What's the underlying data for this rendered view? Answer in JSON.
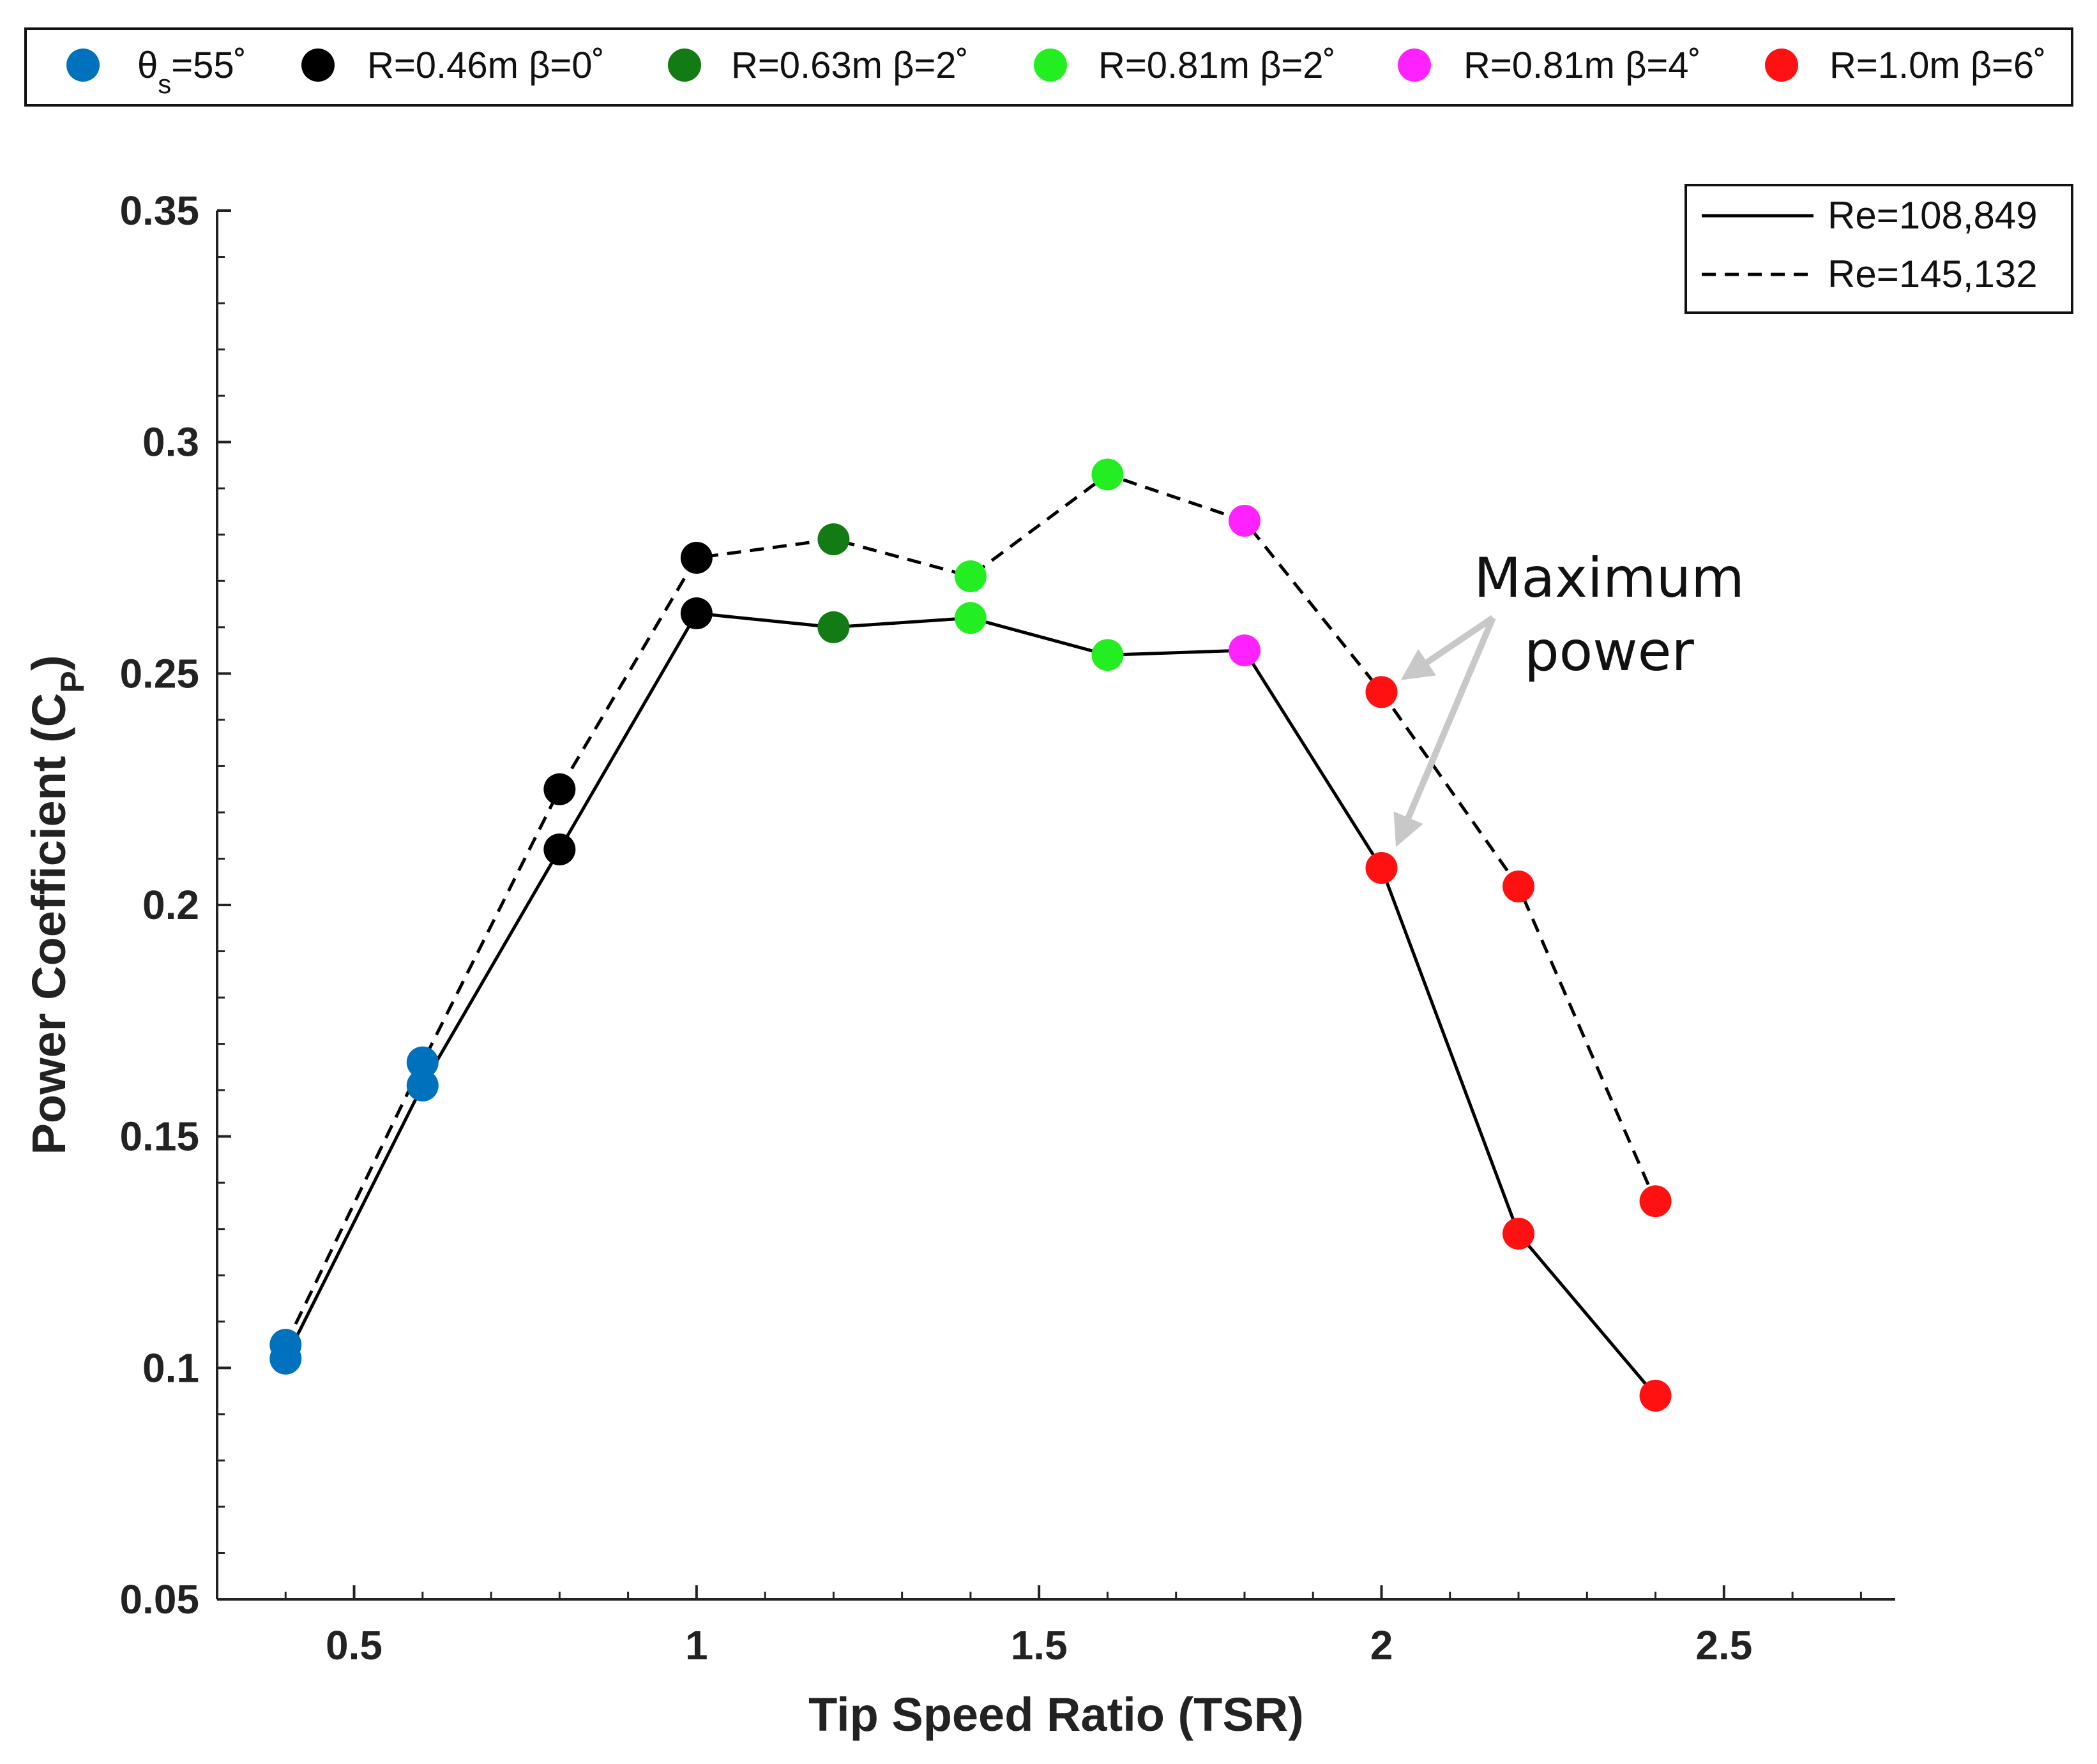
{
  "chart_data": {
    "type": "scatter",
    "title": "",
    "xlabel": "Tip Speed Ratio (TSR)",
    "ylabel_main": "Power Coefficient (C",
    "ylabel_sub": "P",
    "ylabel_close": ")",
    "xlim": [
      0.3,
      2.75
    ],
    "ylim": [
      0.05,
      0.35
    ],
    "xticks": [
      0.5,
      1,
      1.5,
      2,
      2.5
    ],
    "xtick_labels": [
      "0.5",
      "1",
      "1.5",
      "2",
      "2.5"
    ],
    "yticks": [
      0.05,
      0.1,
      0.15,
      0.2,
      0.25,
      0.3,
      0.35
    ],
    "ytick_labels": [
      "0.05",
      "0.1",
      "0.15",
      "0.2",
      "0.25",
      "0.3",
      "0.35"
    ],
    "grid": false,
    "marker_legend": [
      {
        "label_pre": "θ",
        "label_sub": "s",
        "label_post": "=55˚",
        "color": "#0072bd"
      },
      {
        "label": "R=0.46m β=0˚",
        "color": "#000000"
      },
      {
        "label": "R=0.63m β=2˚",
        "color": "#137b13"
      },
      {
        "label": "R=0.81m β=2˚",
        "color": "#22ee22"
      },
      {
        "label": "R=0.81m β=4˚",
        "color": "#ff22ff"
      },
      {
        "label": "R=1.0m β=6˚",
        "color": "#ff1111"
      }
    ],
    "series": [
      {
        "name": "Re=108,849",
        "style": "solid",
        "x": [
          0.4,
          0.6,
          0.8,
          1.0,
          1.2,
          1.4,
          1.6,
          1.8,
          2.0,
          2.2,
          2.4
        ],
        "y": [
          0.102,
          0.161,
          0.212,
          0.263,
          0.26,
          0.262,
          0.254,
          0.255,
          0.208,
          0.129,
          0.094
        ],
        "colors": [
          "#0072bd",
          "#0072bd",
          "#000000",
          "#000000",
          "#137b13",
          "#22ee22",
          "#22ee22",
          "#ff22ff",
          "#ff1111",
          "#ff1111",
          "#ff1111"
        ]
      },
      {
        "name": "Re=145,132",
        "style": "dashed",
        "x": [
          0.4,
          0.6,
          0.8,
          1.0,
          1.2,
          1.4,
          1.6,
          1.8,
          2.0,
          2.2,
          2.4
        ],
        "y": [
          0.105,
          0.166,
          0.225,
          0.275,
          0.279,
          0.271,
          0.293,
          0.283,
          0.246,
          0.204,
          0.136
        ],
        "colors": [
          "#0072bd",
          "#0072bd",
          "#000000",
          "#000000",
          "#137b13",
          "#22ee22",
          "#22ee22",
          "#ff22ff",
          "#ff1111",
          "#ff1111",
          "#ff1111"
        ]
      }
    ],
    "annotations": [
      {
        "text_line1": "Maximum",
        "text_line2": "power",
        "points_to": [
          [
            2.0,
            0.246
          ],
          [
            2.0,
            0.208
          ]
        ]
      }
    ]
  }
}
